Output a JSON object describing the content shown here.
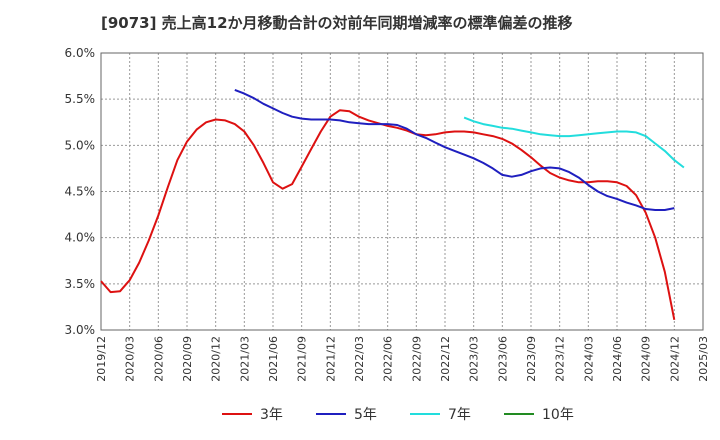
{
  "chart_data": {
    "type": "line",
    "title": "[9073]  売上高12か月移動合計の対前年同期増減率の標準偏差の推移",
    "xlabel": "",
    "ylabel": "",
    "ylim": [
      3.0,
      6.0
    ],
    "y_ticks": [
      "3.0%",
      "3.5%",
      "4.0%",
      "4.5%",
      "5.0%",
      "5.5%",
      "6.0%"
    ],
    "x_ticks": [
      "2019/12",
      "2020/03",
      "2020/06",
      "2020/09",
      "2020/12",
      "2021/03",
      "2021/06",
      "2021/09",
      "2021/12",
      "2022/03",
      "2022/06",
      "2022/09",
      "2022/12",
      "2023/03",
      "2023/06",
      "2023/09",
      "2023/12",
      "2024/03",
      "2024/06",
      "2024/09",
      "2024/12",
      "2025/03"
    ],
    "grid": true,
    "legend_position": "bottom",
    "series": [
      {
        "name": "3年",
        "color": "#dd1111",
        "start_month": "2019/12",
        "values": [
          3.53,
          3.41,
          3.42,
          3.54,
          3.73,
          3.97,
          4.24,
          4.55,
          4.84,
          5.04,
          5.17,
          5.25,
          5.28,
          5.27,
          5.23,
          5.15,
          5.0,
          4.81,
          4.6,
          4.53,
          4.58,
          4.77,
          4.96,
          5.15,
          5.31,
          5.38,
          5.37,
          5.31,
          5.27,
          5.24,
          5.21,
          5.19,
          5.16,
          5.12,
          5.11,
          5.12,
          5.14,
          5.15,
          5.15,
          5.14,
          5.12,
          5.1,
          5.07,
          5.02,
          4.95,
          4.87,
          4.78,
          4.7,
          4.65,
          4.62,
          4.6,
          4.6,
          4.61,
          4.61,
          4.6,
          4.56,
          4.46,
          4.27,
          4.0,
          3.63,
          3.11
        ]
      },
      {
        "name": "5年",
        "color": "#1f1fbf",
        "start_month": "2021/02",
        "values": [
          5.6,
          5.56,
          5.51,
          5.45,
          5.4,
          5.35,
          5.31,
          5.29,
          5.28,
          5.28,
          5.28,
          5.27,
          5.25,
          5.24,
          5.23,
          5.23,
          5.23,
          5.22,
          5.18,
          5.12,
          5.08,
          5.03,
          4.98,
          4.94,
          4.9,
          4.86,
          4.81,
          4.75,
          4.68,
          4.66,
          4.68,
          4.72,
          4.75,
          4.76,
          4.75,
          4.71,
          4.65,
          4.57,
          4.5,
          4.45,
          4.42,
          4.38,
          4.35,
          4.31,
          4.3,
          4.3,
          4.32
        ]
      },
      {
        "name": "7年",
        "color": "#22dddd",
        "start_month": "2023/02",
        "values": [
          5.3,
          5.26,
          5.23,
          5.21,
          5.19,
          5.18,
          5.16,
          5.14,
          5.12,
          5.11,
          5.1,
          5.1,
          5.11,
          5.12,
          5.13,
          5.14,
          5.15,
          5.15,
          5.14,
          5.1,
          5.02,
          4.94,
          4.84,
          4.76
        ]
      },
      {
        "name": "10年",
        "color": "#228b22",
        "start_month": "",
        "values": []
      }
    ]
  }
}
